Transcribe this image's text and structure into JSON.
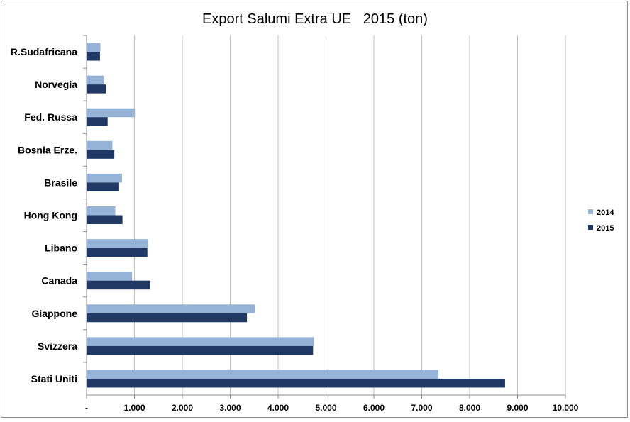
{
  "chart_data": {
    "type": "bar",
    "orientation": "horizontal",
    "title": "Export Salumi Extra UE   2015 (ton)",
    "xlabel": "",
    "ylabel": "",
    "categories": [
      "Stati Uniti",
      "Svizzera",
      "Giappone",
      "Canada",
      "Libano",
      "Hong Kong",
      "Brasile",
      "Bosnia Erze.",
      "Fed. Russa",
      "Norvegia",
      "R.Sudafricana"
    ],
    "series": [
      {
        "name": "2014",
        "color": "#95b3d7",
        "values": [
          7350,
          4750,
          3520,
          950,
          1280,
          600,
          740,
          540,
          1010,
          370,
          290
        ]
      },
      {
        "name": "2015",
        "color": "#1f3864",
        "values": [
          8740,
          4730,
          3350,
          1330,
          1270,
          750,
          680,
          580,
          440,
          400,
          280
        ]
      }
    ],
    "xlim": [
      0,
      10000
    ],
    "x_ticks": [
      "-",
      "1.000",
      "2.000",
      "3.000",
      "4.000",
      "5.000",
      "6.000",
      "7.000",
      "8.000",
      "9.000",
      "10.000"
    ],
    "grid": "vertical",
    "legend_position": "right"
  }
}
